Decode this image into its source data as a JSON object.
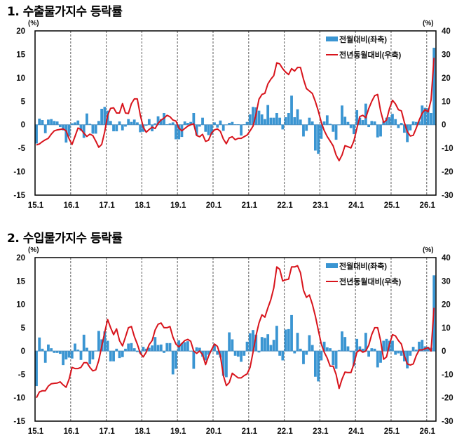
{
  "colors": {
    "bar": "#3a95d2",
    "line": "#d8141c",
    "grid": "#777777"
  },
  "chart_data": [
    {
      "type": "bar+line",
      "title": "1. 수출물가지수 등락률",
      "left_unit": "(%)",
      "right_unit": "(%)",
      "left_ylim": [
        -15,
        20
      ],
      "right_ylim": [
        -30,
        40
      ],
      "left_ticks": [
        20,
        15,
        10,
        5,
        0,
        -5,
        -10,
        -15
      ],
      "right_ticks": [
        40,
        30,
        20,
        10,
        0,
        -10,
        -20,
        -30
      ],
      "x_tick_labels": [
        "15.1",
        "16.1",
        "17.1",
        "18.1",
        "19.1",
        "20.1",
        "21.1",
        "22.1",
        "23.1",
        "24.1",
        "25.1",
        "26.1"
      ],
      "grid": "vertical dashed at January",
      "legend_position": "top-right",
      "legend": [
        "전월대비(좌축)",
        "전년동월대비(우축)"
      ],
      "series": [
        {
          "name": "전월대비(좌축)",
          "type": "bar",
          "axis": "left",
          "values": [
            -4,
            1.3,
            1,
            -1.8,
            1.1,
            1.2,
            0.8,
            0.7,
            -0.5,
            -1.2,
            -3.8,
            -2.5,
            0.3,
            0.5,
            0.9,
            -1.3,
            -2.8,
            2.4,
            0.2,
            -1.9,
            -1.9,
            0.8,
            3.4,
            3.8,
            3.0,
            0.8,
            -1.4,
            -1.4,
            0.7,
            -1.2,
            -0.4,
            1.2,
            0.6,
            1.1,
            0.5,
            -1.6,
            -1.5,
            -0.2,
            1.2,
            -1.4,
            0.3,
            1.8,
            1.2,
            2.5,
            0.1,
            0.3,
            0.5,
            -3.1,
            -3.1,
            -2.6,
            0.7,
            0.4,
            0.6,
            2.5,
            -2.2,
            -0.4,
            1.5,
            -1.5,
            -2.2,
            -2.1,
            0.5,
            -0.6,
            0.9,
            -1.3,
            0,
            0.4,
            0.6,
            0.1,
            0.1,
            -2.3,
            0.1,
            0.6,
            2.2,
            3.8,
            3.7,
            3.0,
            2.2,
            1.2,
            4.2,
            1.5,
            1.5,
            2.5,
            1.5,
            -1.0,
            1.6,
            2.5,
            6.2,
            1.6,
            3.3,
            1.1,
            -2.5,
            -1.3,
            1.5,
            0.7,
            -5.5,
            -6.2,
            -3,
            0.7,
            2,
            0.2,
            -1.5,
            -3.2,
            0,
            4.1,
            1.7,
            0.6,
            -0.7,
            -2,
            3.1,
            1.5,
            1,
            4.5,
            -0.5,
            0.8,
            0.7,
            -2.7,
            -2.5,
            0.7,
            1.5,
            1.6,
            2.3,
            1.2,
            -0.7,
            0.4,
            -1.7,
            -3.7,
            -1.2,
            0.7,
            0.6,
            0.7,
            4.1,
            3.6,
            3.5,
            2.5,
            16.4
          ]
        },
        {
          "name": "전년동월대비(우축)",
          "type": "line",
          "axis": "right",
          "values": [
            -8.6,
            -8.2,
            -7.2,
            -6.4,
            -5.8,
            -4,
            -2.6,
            -2.2,
            -2,
            -1.8,
            -2.6,
            -6,
            -8.4,
            -5,
            -1.4,
            -2,
            -3.6,
            -5,
            -4,
            -4.6,
            -7,
            -9.6,
            -8.4,
            -3,
            4,
            7,
            7.2,
            5,
            5,
            9,
            5,
            4.8,
            9,
            11,
            11,
            4,
            -1,
            -3.2,
            -2,
            -1,
            -1.6,
            0.6,
            2,
            2.8,
            4,
            3.4,
            2,
            1.6,
            -1.4,
            -2.6,
            -1.6,
            -0.6,
            0,
            0.4,
            -4.6,
            -5.1,
            -4.1,
            -7.1,
            -6.6,
            -3.6,
            -2.2,
            -1.8,
            -2.8,
            -6.1,
            -8.1,
            -5.6,
            -5.1,
            -6.4,
            -5.8,
            -5.8,
            -5.1,
            -4.4,
            -2.6,
            -0.6,
            4.4,
            10.9,
            12.9,
            13.4,
            17.4,
            19.4,
            20.9,
            26.4,
            25.9,
            23.9,
            22.4,
            21.4,
            23.9,
            22.9,
            24.4,
            24.4,
            19.4,
            15.4,
            14.4,
            13.3,
            9.9,
            5.9,
            1,
            -2.5,
            -5,
            -7,
            -9,
            -12.9,
            -15.3,
            -12.9,
            -8.9,
            -9.4,
            -9.9,
            -6.9,
            -1.5,
            3.5,
            4,
            3,
            6.9,
            9.9,
            12.4,
            12.9,
            5.9,
            1,
            2,
            6.9,
            10.4,
            8.9,
            6.4,
            5.9,
            1,
            -3,
            -4.8,
            -4.5,
            -1.5,
            2,
            4.9,
            6.4,
            5.5,
            10.5,
            28.5
          ]
        }
      ]
    },
    {
      "type": "bar+line",
      "title": "2. 수입물가지수 등락률",
      "left_unit": "(%)",
      "right_unit": "(%)",
      "left_ylim": [
        -15,
        20
      ],
      "right_ylim": [
        -30,
        40
      ],
      "left_ticks": [
        20,
        15,
        10,
        5,
        0,
        -5,
        -10,
        -15
      ],
      "right_ticks": [
        40,
        30,
        20,
        10,
        0,
        -10,
        -20,
        -30
      ],
      "x_tick_labels": [
        "15.1",
        "16.1",
        "17.1",
        "18.1",
        "19.1",
        "20.1",
        "21.1",
        "22.1",
        "23.1",
        "24.1",
        "25.1",
        "26.1"
      ],
      "grid": "vertical dashed at January",
      "legend_position": "top-right",
      "legend": [
        "전월대비(좌축)",
        "전년동월대비(우축)"
      ],
      "series": [
        {
          "name": "전월대비(좌축)",
          "type": "bar",
          "axis": "left",
          "values": [
            -7.5,
            2.9,
            0.5,
            -2.5,
            1.4,
            0.6,
            -0.4,
            -0.4,
            -0.6,
            -3,
            -1.8,
            -1.4,
            -1.6,
            1.6,
            0.3,
            -1.9,
            3.5,
            0.7,
            -2.8,
            -1.8,
            0.1,
            4.3,
            2.5,
            4.2,
            2.2,
            -2.2,
            -2.2,
            0.5,
            -1.5,
            -1.3,
            0.5,
            1.6,
            1.7,
            0.6,
            -0.2,
            -0.5,
            0.9,
            0.5,
            0.7,
            1.2,
            3,
            1.3,
            1.4,
            -0.4,
            1.7,
            1.7,
            -5,
            -3.8,
            2.3,
            1.7,
            1.9,
            2.1,
            0,
            -3.8,
            0.8,
            0.7,
            -1.2,
            -2,
            -0.8,
            0,
            1.5,
            -0.8,
            -1.4,
            -5.3,
            -5.6,
            4,
            2.5,
            -1,
            -1.2,
            -2.3,
            -1,
            2,
            3.8,
            4.5,
            3.5,
            -0.3,
            3,
            2.8,
            3.6,
            1.3,
            2.4,
            5.4,
            -1,
            -2,
            4.6,
            4.7,
            7.7,
            -0.5,
            3.9,
            0.5,
            -2.8,
            -0.8,
            3.4,
            1.3,
            -5.5,
            -6.5,
            -2,
            2,
            0.8,
            0.6,
            -3,
            -3.8,
            0.2,
            4.2,
            3,
            1,
            -0.2,
            -3.2,
            2.6,
            1,
            0.5,
            3.9,
            -1.2,
            0.6,
            0.5,
            -3.5,
            -2.5,
            2.2,
            2.6,
            2.2,
            2.2,
            -0.8,
            -0.5,
            -1,
            -2.2,
            -3.7,
            -1,
            0.9,
            0.3,
            2,
            2.4,
            1,
            0.9,
            0.7,
            16.2
          ]
        },
        {
          "name": "전년동월대비(우축)",
          "type": "line",
          "axis": "right",
          "values": [
            -20,
            -17.5,
            -17,
            -17,
            -15,
            -14,
            -13.8,
            -13.7,
            -13.2,
            -14.5,
            -15.5,
            -12,
            -7,
            -7.5,
            -7.5,
            -7,
            -5,
            -5,
            -7,
            -8.5,
            -8,
            -4,
            2,
            8,
            13.5,
            10,
            7,
            9.5,
            4.5,
            2.2,
            6,
            10,
            10.5,
            6.2,
            3,
            -1,
            -2.5,
            -0.5,
            2.8,
            4.5,
            9,
            11.5,
            12,
            10,
            10,
            10.5,
            6,
            3,
            1.8,
            3.2,
            4.5,
            5,
            4.2,
            0,
            -1,
            0,
            -1.5,
            -5.8,
            -2.2,
            0.5,
            3,
            2,
            -2,
            -10.5,
            -14.8,
            -13.5,
            -9.5,
            -10.5,
            -11.5,
            -11.5,
            -10.5,
            -9.8,
            -7,
            -0.5,
            6.5,
            12,
            15.5,
            14.5,
            18.5,
            22,
            27,
            36,
            35,
            30,
            30.5,
            30.8,
            36,
            36,
            36.5,
            33.5,
            26,
            23,
            24,
            20,
            15,
            9,
            3,
            -0.5,
            -3,
            -6.5,
            -6.5,
            -10,
            -16,
            -12,
            -9,
            -9.2,
            -9.2,
            -5.5,
            -0.5,
            0.5,
            -0.5,
            0,
            2.5,
            7,
            10,
            10,
            4.5,
            -3.5,
            -2.5,
            3,
            7,
            6.5,
            4.5,
            3,
            -2,
            -5.5,
            -6,
            -5.5,
            -2,
            0.5,
            0.5,
            1,
            1.5,
            0,
            18.5
          ]
        }
      ]
    }
  ]
}
